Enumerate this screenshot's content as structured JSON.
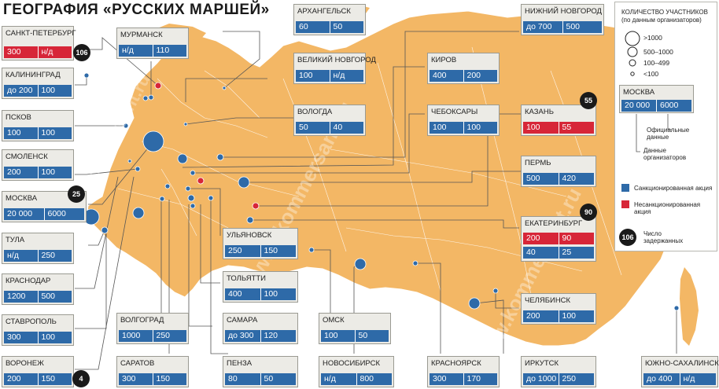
{
  "title": "ГЕОГРАФИЯ «РУССКИХ МАРШЕЙ»",
  "colors": {
    "map": "#f3b765",
    "blue": "#2e6aa8",
    "red": "#d72638",
    "box": "#ecebe6"
  },
  "cities": [
    {
      "key": "spb",
      "name": "САНКТ-ПЕТЕРБУРГ",
      "v1": "300",
      "v2": "н/д",
      "c1": "red",
      "c2": "red",
      "badge": "106"
    },
    {
      "key": "kaliningrad",
      "name": "КАЛИНИНГРАД",
      "v1": "до 200",
      "v2": "100",
      "c1": "blue",
      "c2": "blue"
    },
    {
      "key": "pskov",
      "name": "ПСКОВ",
      "v1": "100",
      "v2": "100",
      "c1": "blue",
      "c2": "blue"
    },
    {
      "key": "smolensk",
      "name": "СМОЛЕНСК",
      "v1": "200",
      "v2": "100",
      "c1": "blue",
      "c2": "blue"
    },
    {
      "key": "moscow",
      "name": "МОСКВА",
      "v1": "20 000",
      "v2": "6000",
      "c1": "blue",
      "c2": "blue",
      "badge": "25"
    },
    {
      "key": "tula",
      "name": "ТУЛА",
      "v1": "н/д",
      "v2": "250",
      "c1": "blue",
      "c2": "blue"
    },
    {
      "key": "krasnodar",
      "name": "КРАСНОДАР",
      "v1": "1200",
      "v2": "500",
      "c1": "blue",
      "c2": "blue"
    },
    {
      "key": "stavropol",
      "name": "СТАВРОПОЛЬ",
      "v1": "300",
      "v2": "100",
      "c1": "blue",
      "c2": "blue"
    },
    {
      "key": "voronezh",
      "name": "ВОРОНЕЖ",
      "v1": "200",
      "v2": "150",
      "c1": "blue",
      "c2": "blue",
      "badge": "4"
    },
    {
      "key": "murmansk",
      "name": "МУРМАНСК",
      "v1": "н/д",
      "v2": "110",
      "c1": "blue",
      "c2": "blue"
    },
    {
      "key": "arkhangelsk",
      "name": "АРХАНГЕЛЬСК",
      "v1": "60",
      "v2": "50",
      "c1": "blue",
      "c2": "blue"
    },
    {
      "key": "vnovgorod",
      "name": "ВЕЛИКИЙ НОВГОРОД",
      "v1": "100",
      "v2": "н/д",
      "c1": "blue",
      "c2": "blue"
    },
    {
      "key": "vologda",
      "name": "ВОЛОГДА",
      "v1": "50",
      "v2": "40",
      "c1": "blue",
      "c2": "blue"
    },
    {
      "key": "volgograd",
      "name": "ВОЛГОГРАД",
      "v1": "1000",
      "v2": "250",
      "c1": "blue",
      "c2": "blue"
    },
    {
      "key": "saratov",
      "name": "САРАТОВ",
      "v1": "300",
      "v2": "150",
      "c1": "blue",
      "c2": "blue"
    },
    {
      "key": "ulyanovsk",
      "name": "УЛЬЯНОВСК",
      "v1": "250",
      "v2": "150",
      "c1": "blue",
      "c2": "blue"
    },
    {
      "key": "togliatti",
      "name": "ТОЛЬЯТТИ",
      "v1": "400",
      "v2": "100",
      "c1": "blue",
      "c2": "blue"
    },
    {
      "key": "samara",
      "name": "САМАРА",
      "v1": "до 300",
      "v2": "120",
      "c1": "blue",
      "c2": "blue"
    },
    {
      "key": "penza",
      "name": "ПЕНЗА",
      "v1": "80",
      "v2": "50",
      "c1": "blue",
      "c2": "blue"
    },
    {
      "key": "nnovgorod",
      "name": "НИЖНИЙ НОВГОРОД",
      "v1": "до 700",
      "v2": "500",
      "c1": "blue",
      "c2": "blue"
    },
    {
      "key": "kirov",
      "name": "КИРОВ",
      "v1": "400",
      "v2": "200",
      "c1": "blue",
      "c2": "blue"
    },
    {
      "key": "cheboksary",
      "name": "ЧЕБОКСАРЫ",
      "v1": "100",
      "v2": "100",
      "c1": "blue",
      "c2": "blue"
    },
    {
      "key": "kazan",
      "name": "КАЗАНЬ",
      "v1": "100",
      "v2": "55",
      "c1": "red",
      "c2": "red",
      "badge": "55"
    },
    {
      "key": "perm",
      "name": "ПЕРМЬ",
      "v1": "500",
      "v2": "420",
      "c1": "blue",
      "c2": "blue"
    },
    {
      "key": "ekb",
      "name": "ЕКАТЕРИНБУРГ",
      "v1": "200",
      "v2": "90",
      "c1": "red",
      "c2": "red",
      "v3": "40",
      "v4": "25",
      "c3": "blue",
      "c4": "blue",
      "badge": "90"
    },
    {
      "key": "omsk",
      "name": "ОМСК",
      "v1": "100",
      "v2": "50",
      "c1": "blue",
      "c2": "blue"
    },
    {
      "key": "novosibirsk",
      "name": "НОВОСИБИРСК",
      "v1": "н/д",
      "v2": "800",
      "c1": "blue",
      "c2": "blue"
    },
    {
      "key": "krasnoyarsk",
      "name": "КРАСНОЯРСК",
      "v1": "300",
      "v2": "170",
      "c1": "blue",
      "c2": "blue"
    },
    {
      "key": "irkutsk",
      "name": "ИРКУТСК",
      "v1": "до 1000",
      "v2": "250",
      "c1": "blue",
      "c2": "blue"
    },
    {
      "key": "chelyabinsk",
      "name": "ЧЕЛЯБИНСК",
      "v1": "200",
      "v2": "100",
      "c1": "blue",
      "c2": "blue"
    },
    {
      "key": "yuzhno",
      "name": "ЮЖНО-САХАЛИНСК",
      "v1": "до 400",
      "v2": "н/д",
      "c1": "blue",
      "c2": "blue"
    }
  ],
  "legend": {
    "title_line1": "КОЛИЧЕСТВО УЧАСТНИКОВ",
    "title_line2": "(по данным организаторов)",
    "sizes": [
      ">1000",
      "500–1000",
      "100–499",
      "<100"
    ],
    "sample_name": "МОСКВА",
    "sample_v1": "20 000",
    "sample_v2": "6000",
    "official": "Официальные данные",
    "organizers": "Данные организаторов",
    "sanctioned": "Санкционированная акция",
    "unsanctioned": "Несанкционированная акция",
    "detained_badge": "106",
    "detained": "Число задержанных"
  },
  "watermark": "www.kommersant.ru"
}
